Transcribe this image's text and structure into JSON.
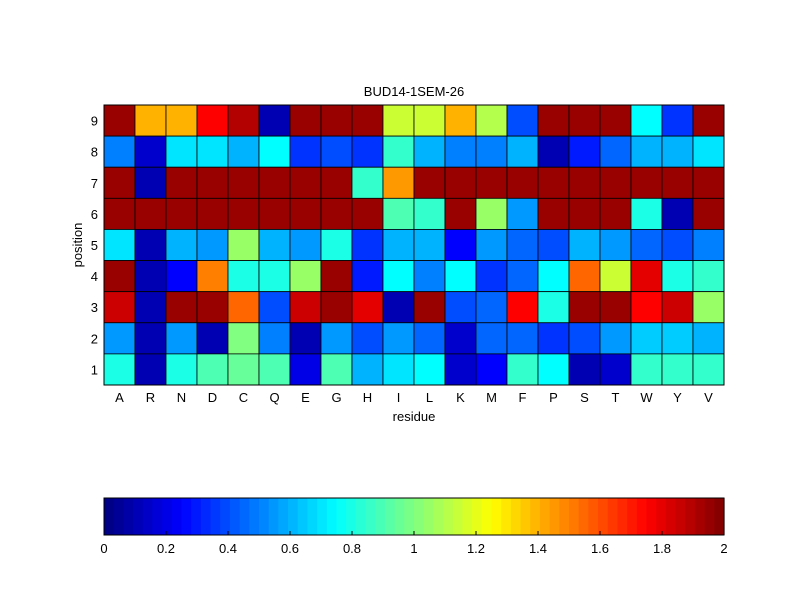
{
  "chart_data": {
    "type": "heatmap",
    "title": "BUD14-1SEM-26",
    "xlabel": "residue",
    "ylabel": "position",
    "x_categories": [
      "A",
      "R",
      "N",
      "D",
      "C",
      "Q",
      "E",
      "G",
      "H",
      "I",
      "L",
      "K",
      "M",
      "F",
      "P",
      "S",
      "T",
      "W",
      "Y",
      "V"
    ],
    "y_categories": [
      "9",
      "8",
      "7",
      "6",
      "5",
      "4",
      "3",
      "2",
      "1"
    ],
    "values": [
      [
        1.95,
        1.4,
        1.4,
        1.75,
        1.9,
        0.1,
        1.95,
        1.95,
        1.95,
        1.15,
        1.15,
        1.4,
        1.1,
        0.4,
        1.95,
        1.95,
        1.95,
        0.75,
        0.35,
        1.95
      ],
      [
        0.5,
        0.15,
        0.7,
        0.7,
        0.6,
        0.75,
        0.35,
        0.4,
        0.35,
        0.85,
        0.6,
        0.5,
        0.5,
        0.6,
        0.1,
        0.3,
        0.45,
        0.6,
        0.6,
        0.7
      ],
      [
        1.95,
        0.1,
        1.95,
        1.95,
        1.95,
        1.95,
        1.95,
        1.95,
        0.85,
        1.45,
        1.95,
        1.95,
        1.95,
        1.95,
        1.95,
        1.95,
        1.95,
        1.95,
        1.95,
        1.95
      ],
      [
        1.95,
        1.95,
        1.95,
        1.95,
        1.95,
        1.95,
        1.95,
        1.95,
        1.95,
        0.9,
        0.85,
        1.95,
        1.05,
        0.55,
        1.95,
        1.95,
        1.95,
        0.8,
        0.1,
        1.95
      ],
      [
        0.7,
        0.1,
        0.6,
        0.55,
        1.05,
        0.6,
        0.55,
        0.8,
        0.35,
        0.6,
        0.6,
        0.25,
        0.55,
        0.45,
        0.4,
        0.6,
        0.55,
        0.45,
        0.4,
        0.5
      ],
      [
        1.95,
        0.1,
        0.25,
        1.5,
        0.8,
        0.8,
        1.05,
        1.95,
        0.3,
        0.75,
        0.5,
        0.75,
        0.35,
        0.45,
        0.75,
        1.55,
        1.15,
        1.8,
        0.8,
        0.85
      ],
      [
        1.85,
        0.1,
        1.95,
        1.95,
        1.55,
        0.4,
        1.85,
        1.95,
        1.8,
        0.1,
        1.95,
        0.4,
        0.45,
        1.75,
        0.8,
        1.95,
        1.95,
        1.75,
        1.85,
        1.05
      ],
      [
        0.55,
        0.1,
        0.55,
        0.1,
        1.0,
        0.5,
        0.1,
        0.55,
        0.4,
        0.55,
        0.45,
        0.15,
        0.45,
        0.45,
        0.35,
        0.4,
        0.55,
        0.65,
        0.65,
        0.6
      ],
      [
        0.8,
        0.1,
        0.8,
        0.9,
        0.95,
        0.9,
        0.2,
        0.9,
        0.6,
        0.7,
        0.75,
        0.15,
        0.25,
        0.85,
        0.75,
        0.1,
        0.15,
        0.85,
        0.85,
        0.85
      ]
    ],
    "colorbar": {
      "range": [
        0,
        2
      ],
      "ticks": [
        "0",
        "0.2",
        "0.4",
        "0.6",
        "0.8",
        "1",
        "1.2",
        "1.4",
        "1.6",
        "1.8",
        "2"
      ],
      "colormap": "jet"
    },
    "grid": false
  }
}
